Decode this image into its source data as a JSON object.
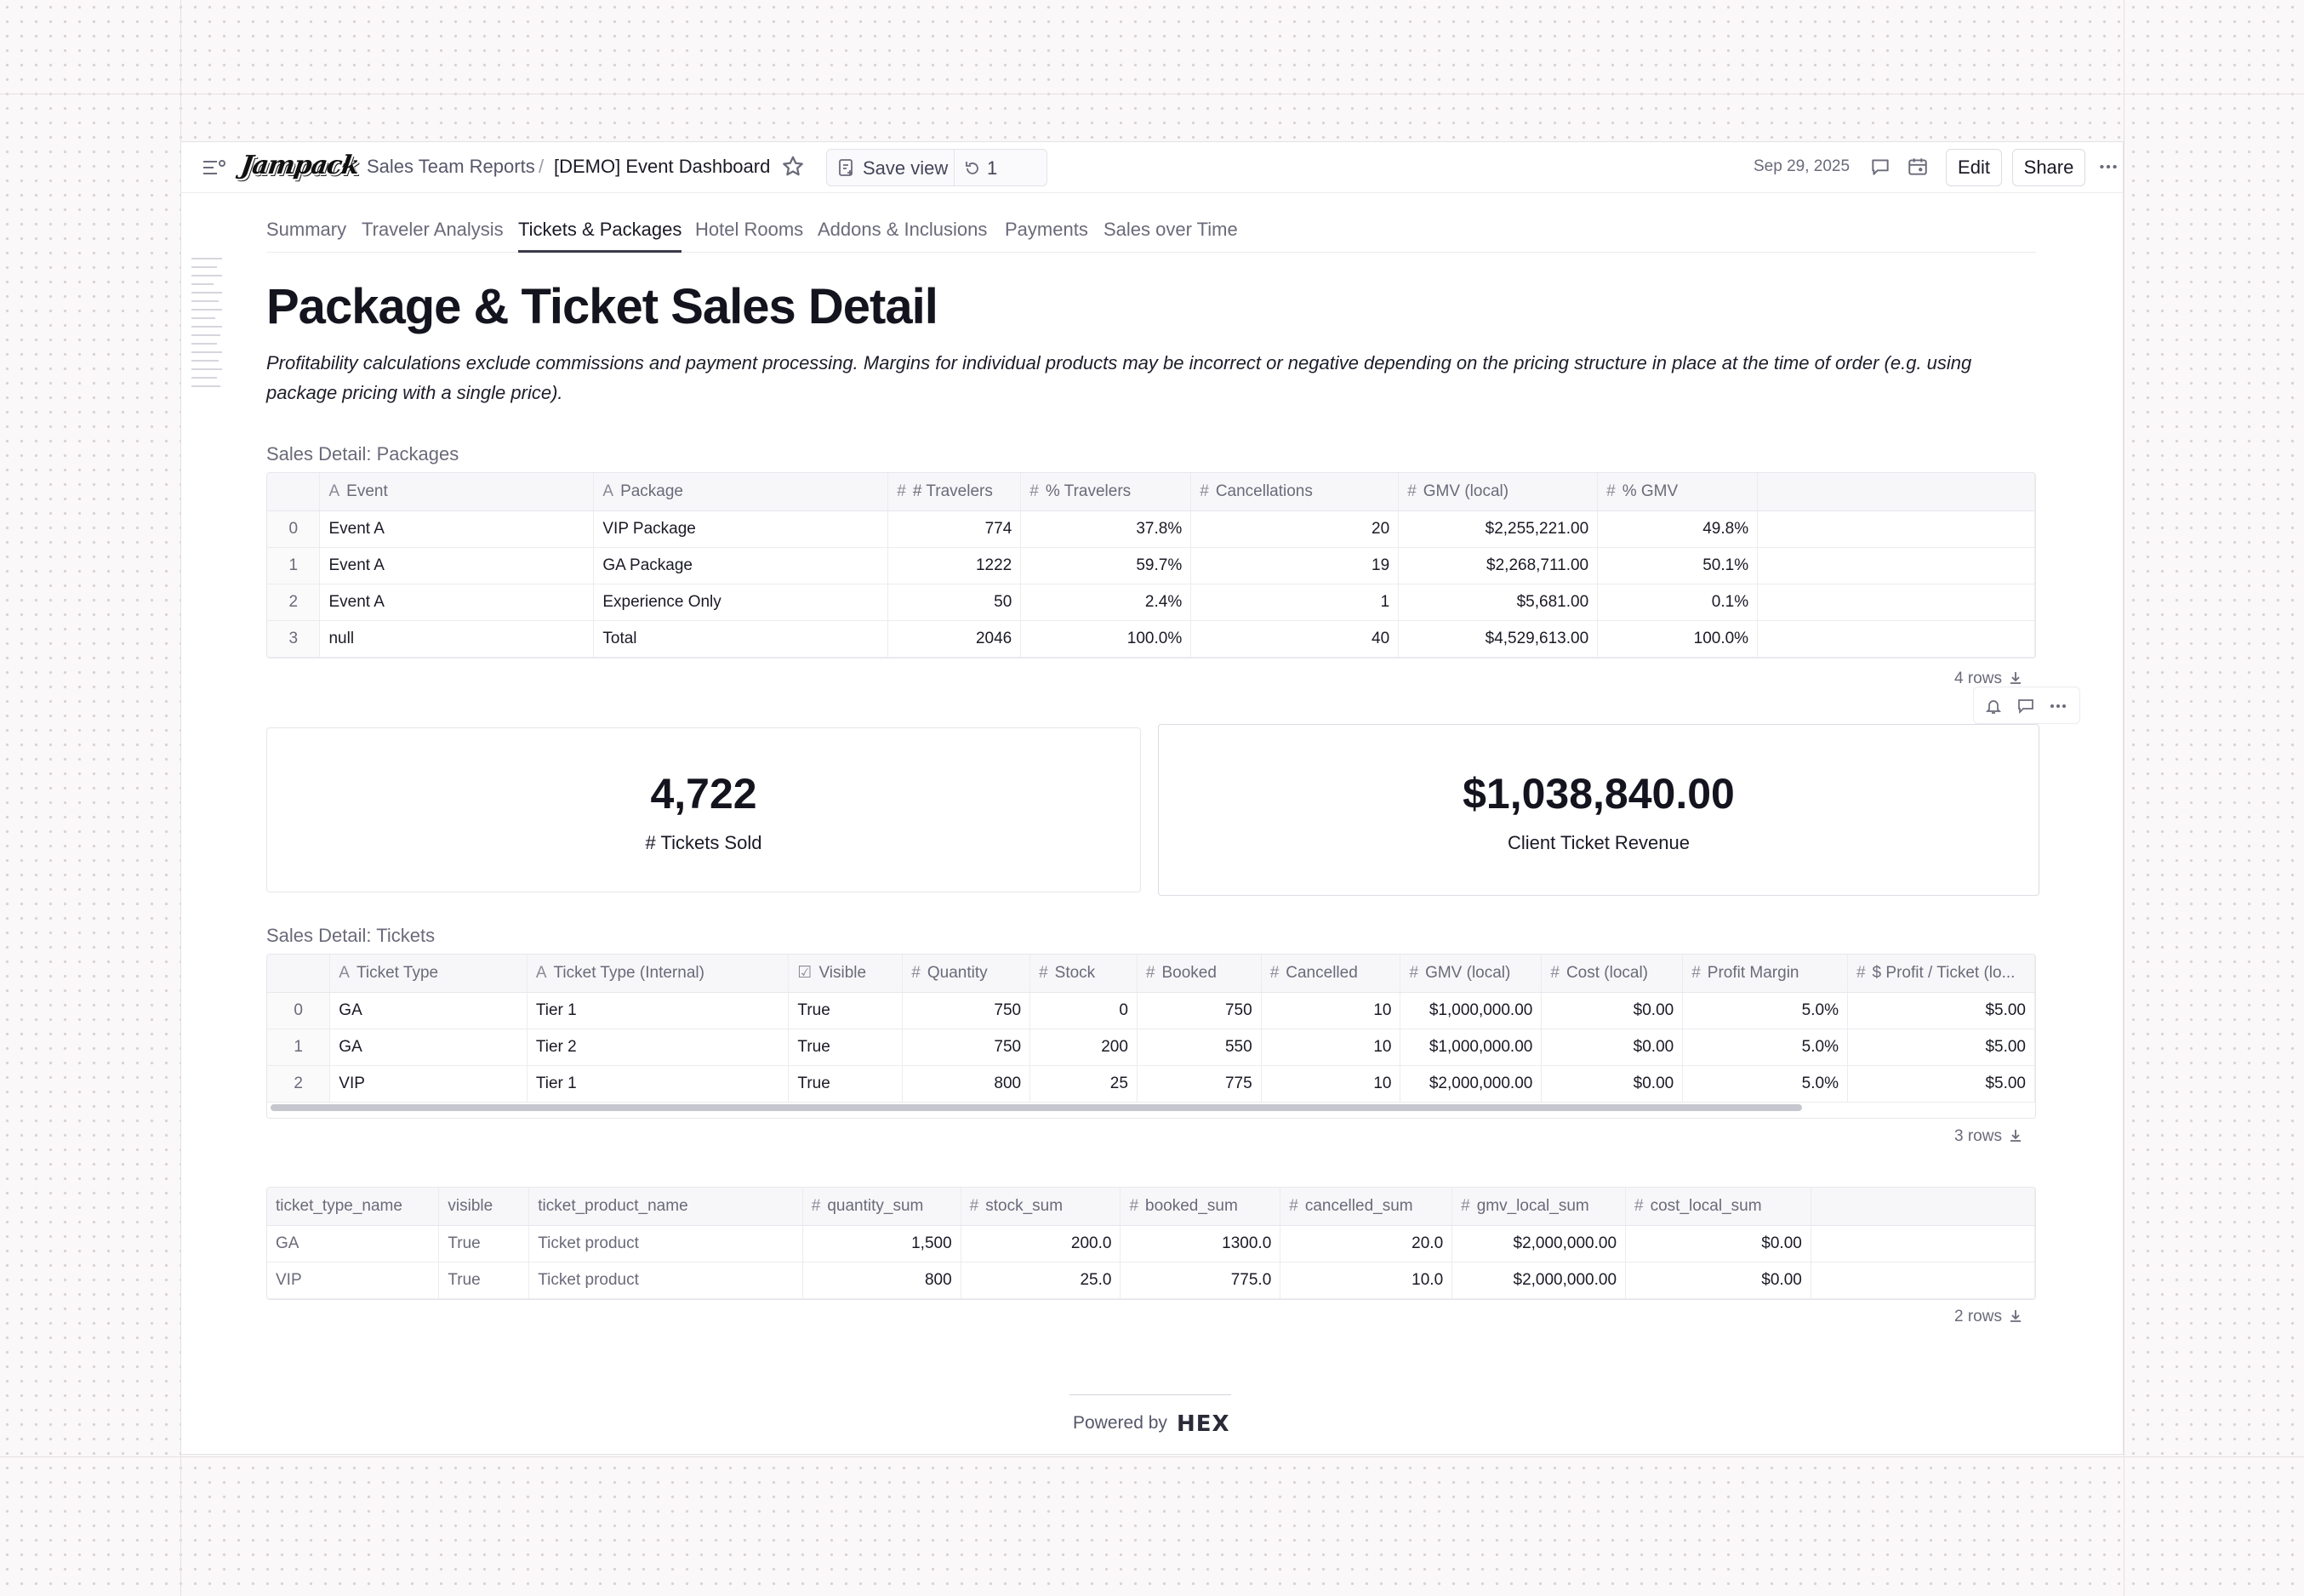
{
  "header": {
    "logo_text": "Jampack",
    "breadcrumb_root": "Sales Team Reports",
    "breadcrumb_sep": "/",
    "breadcrumb_title": "[DEMO] Event Dashboard",
    "save_view_label": "Save view",
    "revision_count": "1",
    "date": "Sep 29, 2025",
    "edit_label": "Edit",
    "share_label": "Share"
  },
  "tabs": [
    {
      "label": "Summary",
      "active": false
    },
    {
      "label": "Traveler Analysis",
      "active": false
    },
    {
      "label": "Tickets & Packages",
      "active": true
    },
    {
      "label": "Hotel Rooms",
      "active": false
    },
    {
      "label": "Addons & Inclusions",
      "active": false
    },
    {
      "label": "Payments",
      "active": false
    },
    {
      "label": "Sales over Time",
      "active": false
    }
  ],
  "page": {
    "title": "Package & Ticket Sales Detail",
    "subtitle": "Profitability calculations exclude commissions and payment processing. Margins for individual products may be incorrect or negative depending on the pricing structure in place at the time of order (e.g. using package pricing with a single price)."
  },
  "packages": {
    "label": "Sales Detail: Packages",
    "columns": [
      {
        "name": "Event",
        "type": "text"
      },
      {
        "name": "Package",
        "type": "text"
      },
      {
        "name": "# Travelers",
        "type": "number"
      },
      {
        "name": "% Travelers",
        "type": "number"
      },
      {
        "name": "Cancellations",
        "type": "number"
      },
      {
        "name": "GMV (local)",
        "type": "number"
      },
      {
        "name": "% GMV",
        "type": "number"
      }
    ],
    "rows": [
      [
        "0",
        "Event A",
        "VIP Package",
        "774",
        "37.8%",
        "20",
        "$2,255,221.00",
        "49.8%"
      ],
      [
        "1",
        "Event A",
        "GA Package",
        "1222",
        "59.7%",
        "19",
        "$2,268,711.00",
        "50.1%"
      ],
      [
        "2",
        "Event A",
        "Experience Only",
        "50",
        "2.4%",
        "1",
        "$5,681.00",
        "0.1%"
      ],
      [
        "3",
        "null",
        "Total",
        "2046",
        "100.0%",
        "40",
        "$4,529,613.00",
        "100.0%"
      ]
    ],
    "row_count": "4 rows"
  },
  "cards": [
    {
      "value": "4,722",
      "caption": "# Tickets Sold"
    },
    {
      "value": "$1,038,840.00",
      "caption": "Client Ticket Revenue"
    }
  ],
  "tickets": {
    "label": "Sales Detail: Tickets",
    "columns": [
      {
        "name": "Ticket Type",
        "type": "text"
      },
      {
        "name": "Ticket Type (Internal)",
        "type": "text"
      },
      {
        "name": "Visible",
        "type": "bool"
      },
      {
        "name": "Quantity",
        "type": "number"
      },
      {
        "name": "Stock",
        "type": "number"
      },
      {
        "name": "Booked",
        "type": "number"
      },
      {
        "name": "Cancelled",
        "type": "number"
      },
      {
        "name": "GMV (local)",
        "type": "number"
      },
      {
        "name": "Cost (local)",
        "type": "number"
      },
      {
        "name": "Profit Margin",
        "type": "number"
      },
      {
        "name": "$ Profit / Ticket (lo...",
        "type": "number"
      }
    ],
    "rows": [
      [
        "0",
        "GA",
        "Tier 1",
        "True",
        "750",
        "0",
        "750",
        "10",
        "$1,000,000.00",
        "$0.00",
        "5.0%",
        "$5.00"
      ],
      [
        "1",
        "GA",
        "Tier 2",
        "True",
        "750",
        "200",
        "550",
        "10",
        "$1,000,000.00",
        "$0.00",
        "5.0%",
        "$5.00"
      ],
      [
        "2",
        "VIP",
        "Tier 1",
        "True",
        "800",
        "25",
        "775",
        "10",
        "$2,000,000.00",
        "$0.00",
        "5.0%",
        "$5.00"
      ]
    ],
    "row_count": "3 rows"
  },
  "summary": {
    "columns": [
      {
        "name": "ticket_type_name",
        "type": "plain"
      },
      {
        "name": "visible",
        "type": "plain"
      },
      {
        "name": "ticket_product_name",
        "type": "plain"
      },
      {
        "name": "quantity_sum",
        "type": "number"
      },
      {
        "name": "stock_sum",
        "type": "number"
      },
      {
        "name": "booked_sum",
        "type": "number"
      },
      {
        "name": "cancelled_sum",
        "type": "number"
      },
      {
        "name": "gmv_local_sum",
        "type": "number"
      },
      {
        "name": "cost_local_sum",
        "type": "number"
      }
    ],
    "rows": [
      [
        "GA",
        "True",
        "Ticket product",
        "1,500",
        "200.0",
        "1300.0",
        "20.0",
        "$2,000,000.00",
        "$0.00"
      ],
      [
        "VIP",
        "True",
        "Ticket product",
        "800",
        "25.0",
        "775.0",
        "10.0",
        "$2,000,000.00",
        "$0.00"
      ]
    ],
    "row_count": "2 rows"
  },
  "footer": {
    "powered_by": "Powered by",
    "brand": "HEX"
  },
  "colors": {
    "background": "#faf8f9",
    "text": "#1a1a26",
    "muted": "#6a6a7a"
  }
}
